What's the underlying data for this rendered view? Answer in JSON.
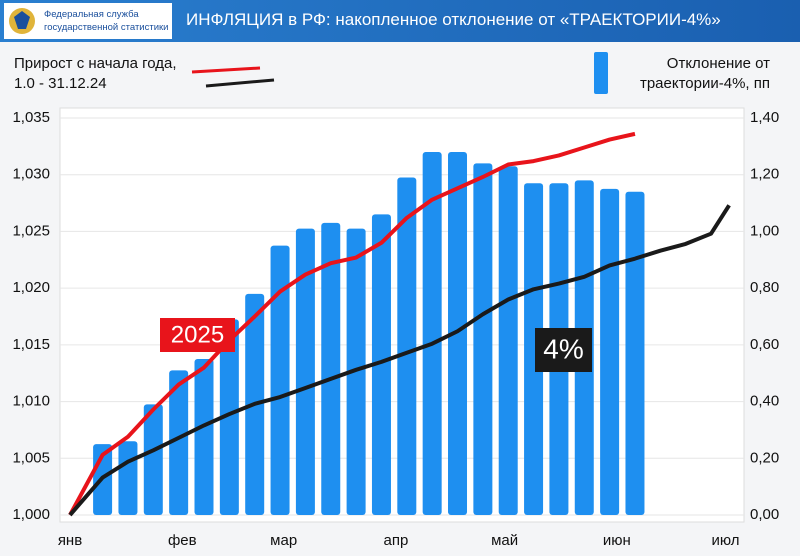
{
  "header": {
    "logo_text": "Федеральная служба государственной статистики"
  },
  "chart_data": {
    "type": "combo",
    "title": "ИНФЛЯЦИЯ в РФ: накопленное отклонение от «ТРАЕКТОРИИ-4%»",
    "legend_line_label": "Прирост с начала года, 1.0 - 31.12.24",
    "xlim": [
      0,
      185
    ],
    "xticks": [
      {
        "value": 0,
        "label": "янв"
      },
      {
        "value": 31,
        "label": "фев"
      },
      {
        "value": 59,
        "label": "мар"
      },
      {
        "value": 90,
        "label": "апр"
      },
      {
        "value": 120,
        "label": "май"
      },
      {
        "value": 151,
        "label": "июн"
      },
      {
        "value": 181,
        "label": "июл"
      }
    ],
    "ylim": [
      1.0,
      1.035
    ],
    "yticks": [
      {
        "value": 1.0,
        "label": "1,000"
      },
      {
        "value": 1.005,
        "label": "1,005"
      },
      {
        "value": 1.01,
        "label": "1,010"
      },
      {
        "value": 1.015,
        "label": "1,015"
      },
      {
        "value": 1.02,
        "label": "1,020"
      },
      {
        "value": 1.025,
        "label": "1,025"
      },
      {
        "value": 1.03,
        "label": "1,030"
      },
      {
        "value": 1.035,
        "label": "1,035"
      }
    ],
    "y2lim": [
      0,
      1.4
    ],
    "y2ticks": [
      {
        "value": 0,
        "label": "0,00"
      },
      {
        "value": 0.2,
        "label": "0,20"
      },
      {
        "value": 0.4,
        "label": "0,40"
      },
      {
        "value": 0.6,
        "label": "0,60"
      },
      {
        "value": 0.8,
        "label": "0,80"
      },
      {
        "value": 1.0,
        "label": "1,00"
      },
      {
        "value": 1.2,
        "label": "1,20"
      },
      {
        "value": 1.4,
        "label": "1,40"
      }
    ],
    "grid": true,
    "series": [
      {
        "name": "Отклонение от траектории-4%, пп",
        "type": "bar",
        "axis": "y2",
        "color": "#1e8ff0",
        "x": [
          9,
          16,
          23,
          30,
          37,
          44,
          51,
          58,
          65,
          72,
          79,
          86,
          93,
          100,
          107,
          114,
          121,
          128,
          135,
          142,
          149,
          156
        ],
        "values": [
          0.25,
          0.26,
          0.39,
          0.51,
          0.55,
          0.69,
          0.78,
          0.95,
          1.01,
          1.03,
          1.01,
          1.06,
          1.19,
          1.28,
          1.28,
          1.24,
          1.23,
          1.17,
          1.17,
          1.18,
          1.15,
          1.14
        ]
      },
      {
        "name": "2025",
        "type": "line",
        "axis": "y",
        "color": "#e8141b",
        "x": [
          0,
          9,
          16,
          23,
          30,
          37,
          44,
          51,
          58,
          65,
          72,
          79,
          86,
          93,
          100,
          107,
          114,
          121,
          128,
          135,
          142,
          149,
          156
        ],
        "values": [
          1.0,
          1.0053,
          1.0069,
          1.0093,
          1.0115,
          1.013,
          1.0154,
          1.0175,
          1.0197,
          1.0212,
          1.0222,
          1.0227,
          1.024,
          1.0262,
          1.0278,
          1.0288,
          1.0298,
          1.0309,
          1.0312,
          1.0317,
          1.0324,
          1.0331,
          1.0336
        ]
      },
      {
        "name": "4%",
        "type": "line",
        "axis": "y",
        "color": "#1a1a1a",
        "x": [
          0,
          9,
          16,
          23,
          30,
          37,
          44,
          51,
          58,
          65,
          72,
          79,
          86,
          93,
          100,
          107,
          114,
          121,
          128,
          135,
          142,
          149,
          156,
          163,
          170,
          177,
          182
        ],
        "values": [
          1.0,
          1.0033,
          1.0047,
          1.0057,
          1.0068,
          1.0079,
          1.0089,
          1.0098,
          1.0104,
          1.0112,
          1.012,
          1.0128,
          1.0135,
          1.0143,
          1.0151,
          1.0162,
          1.0177,
          1.019,
          1.0199,
          1.0204,
          1.021,
          1.022,
          1.0226,
          1.0233,
          1.0239,
          1.0248,
          1.0273
        ]
      }
    ]
  }
}
